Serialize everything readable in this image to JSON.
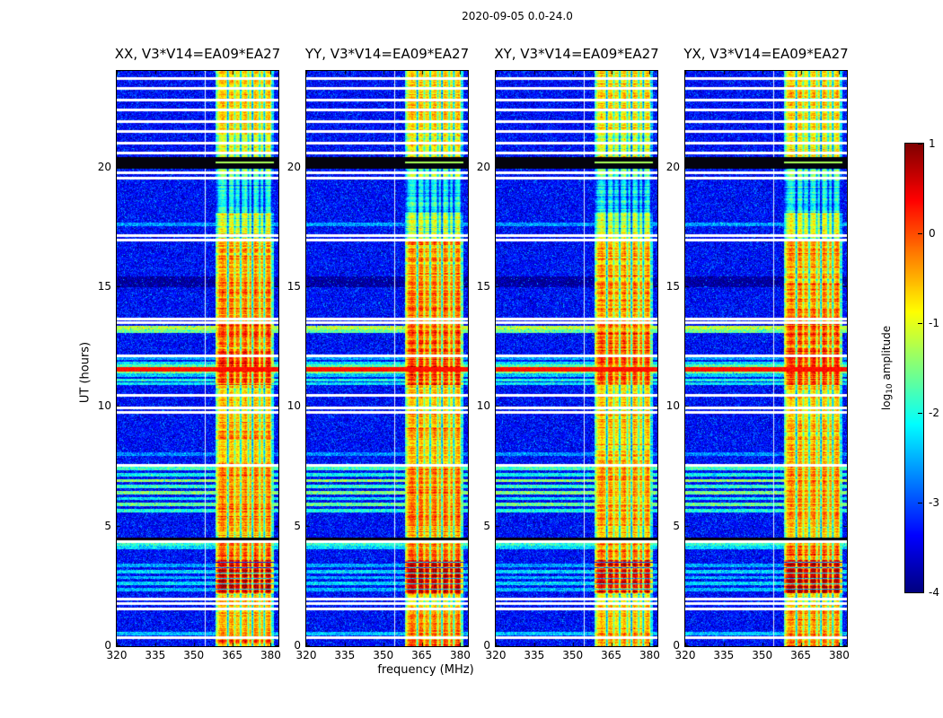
{
  "chart_data": {
    "type": "heatmap",
    "title": "2020-09-05 0.0-24.0",
    "description": "Four dynamic-spectrum (spectrogram) panels of correlation products XX, YY, XY, YX for baseline V3*V14=EA09*EA27, frequency 320-383 MHz vs UT 0-24 h, jet colormap of log10 amplitude from -4 to 1, with a bright emission band near 360-381 MHz, horizontal data gaps, a black flagged band near UT 20.2, a red broadband burst line near UT 11.5 and strong red bursts near UT 2.2-3.6.",
    "figure": {
      "suptitle": "2020-09-05 0.0-24.0",
      "xlabel": "frequency (MHz)",
      "ylabel": "UT (hours)"
    },
    "panels": [
      {
        "title": "XX, V3*V14=EA09*EA27",
        "seed": 101,
        "band_offset": 0
      },
      {
        "title": "YY, V3*V14=EA09*EA27",
        "seed": 202,
        "band_offset": 0.05
      },
      {
        "title": "XY, V3*V14=EA09*EA27",
        "seed": 303,
        "band_offset": -0.1
      },
      {
        "title": "YX, V3*V14=EA09*EA27",
        "seed": 404,
        "band_offset": 0
      }
    ],
    "axes": {
      "x": {
        "label": "frequency (MHz)",
        "min": 320,
        "max": 383,
        "ticks": [
          320,
          335,
          350,
          365,
          380
        ]
      },
      "y": {
        "label": "UT (hours)",
        "min": 0,
        "max": 24,
        "ticks": [
          0,
          5,
          10,
          15,
          20
        ]
      }
    },
    "colorbar": {
      "label_prefix": "log",
      "label_sub": "10",
      "label_suffix": " amplitude",
      "vmin": -4,
      "vmax": 1,
      "ticks": [
        1,
        0,
        -1,
        -2,
        -3,
        -4
      ]
    },
    "model": {
      "background": {
        "level": -3.35,
        "noise": 0.6,
        "speckle_chance": 0.018,
        "speckle_level": -2.55
      },
      "band": {
        "f_start": 358.5,
        "f_end": 381.3,
        "base": -0.85,
        "edge_taper": 0.85,
        "bright": [
          361.3,
          364.8,
          370.2,
          374.0,
          379.3
        ],
        "bright_boost": 0.3,
        "notches": [
          [
            363.3,
            2.2
          ],
          [
            366.0,
            1.0
          ],
          [
            368.3,
            2.0
          ],
          [
            371.3,
            1.2
          ],
          [
            372.9,
            2.4
          ],
          [
            375.7,
            1.4
          ],
          [
            377.5,
            2.0
          ],
          [
            380.5,
            0.9
          ]
        ],
        "row_flicker": 0.5,
        "pixel_noise": 0.38
      },
      "profile": [
        [
          0,
          0.5,
          0.6
        ],
        [
          0.5,
          1.6,
          0.35
        ],
        [
          1.6,
          2.2,
          0.1
        ],
        [
          2.2,
          3.6,
          1.25
        ],
        [
          3.6,
          4.4,
          0.55
        ],
        [
          4.4,
          5.0,
          0.2
        ],
        [
          5.0,
          7.5,
          0.45
        ],
        [
          7.5,
          8.6,
          0.15
        ],
        [
          8.6,
          9.7,
          0.3
        ],
        [
          9.7,
          10.9,
          0.1
        ],
        [
          10.9,
          12.2,
          0.9
        ],
        [
          12.2,
          13.7,
          0.7
        ],
        [
          13.7,
          15.2,
          0.5
        ],
        [
          15.2,
          16.9,
          0.35
        ],
        [
          16.9,
          18.1,
          -0.3
        ],
        [
          18.1,
          19.6,
          -1.3
        ],
        [
          19.6,
          19.95,
          -0.6
        ],
        [
          20.45,
          21.5,
          -0.2
        ],
        [
          21.5,
          24.01,
          0.1
        ]
      ],
      "burst_stripes": [
        2.2,
        3.6
      ],
      "ripple": {
        "t0": 12.2,
        "t1": 16.9,
        "amp": 0.15,
        "freq": 18
      },
      "gaps": [
        0.35,
        1.55,
        1.75,
        1.95,
        4.35,
        7.55,
        9.75,
        9.95,
        10.45,
        12.1,
        13.5,
        13.65,
        16.95,
        17.15,
        19.55,
        19.75,
        20.6,
        21.0,
        21.5,
        21.9,
        22.4,
        22.8,
        23.3,
        23.7
      ],
      "gap_halfwidth": 0.055,
      "black_bands": [
        [
          19.95,
          20.42
        ],
        [
          4.42,
          4.52
        ]
      ],
      "black_band_green_line": 20.2,
      "red_line": {
        "t": 11.55,
        "halfwidth": 0.09,
        "level": 0.3
      },
      "white_vline_freq": 354.4,
      "streaks": [
        [
          0.5,
          -2.4
        ],
        [
          2.35,
          -2.5
        ],
        [
          2.6,
          -2.3
        ],
        [
          2.85,
          -2.5
        ],
        [
          3.1,
          -2.3
        ],
        [
          3.35,
          -2.6
        ],
        [
          4.1,
          -2.3
        ],
        [
          4.25,
          -1.9
        ],
        [
          5.65,
          -2.0
        ],
        [
          5.9,
          -1.6
        ],
        [
          6.15,
          -2.2
        ],
        [
          6.4,
          -1.5
        ],
        [
          6.65,
          -1.9
        ],
        [
          6.9,
          -1.4
        ],
        [
          7.15,
          -2.1
        ],
        [
          7.4,
          -1.8
        ],
        [
          8.0,
          -2.7
        ],
        [
          10.95,
          -2.2
        ],
        [
          11.1,
          -2.0
        ],
        [
          11.3,
          -2.4
        ],
        [
          11.4,
          -1.5
        ],
        [
          11.7,
          -1.7
        ],
        [
          11.8,
          -2.3
        ],
        [
          12.0,
          -2.6
        ],
        [
          13.15,
          -1.6
        ],
        [
          13.3,
          -1.2
        ],
        [
          15.05,
          -3.85
        ],
        [
          15.2,
          -3.9
        ],
        [
          15.35,
          -3.85
        ],
        [
          17.6,
          -2.6
        ]
      ],
      "streak_halfwidth": 0.07
    }
  }
}
